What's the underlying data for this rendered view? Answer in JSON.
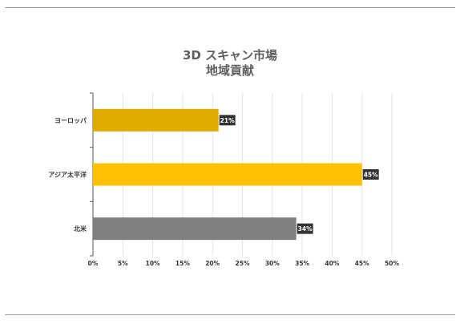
{
  "title_line1": "3D スキャン市場",
  "title_line2": "地域貢献",
  "chart_data": {
    "type": "bar",
    "orientation": "horizontal",
    "title": "3D スキャン市場 地域貢献",
    "categories": [
      "ヨーロッパ",
      "アジア太平洋",
      "北米"
    ],
    "values": [
      21,
      45,
      34
    ],
    "value_labels": [
      "21%",
      "45%",
      "34%"
    ],
    "colors": [
      "#E0AC00",
      "#FFC000",
      "#808080"
    ],
    "xlim": [
      0,
      50
    ],
    "xticks": [
      0,
      5,
      10,
      15,
      20,
      25,
      30,
      35,
      40,
      45,
      50
    ],
    "xtick_labels": [
      "0%",
      "5%",
      "10%",
      "15%",
      "20%",
      "25%",
      "30%",
      "35%",
      "40%",
      "45%",
      "50%"
    ],
    "grid": true,
    "legend": "none"
  }
}
